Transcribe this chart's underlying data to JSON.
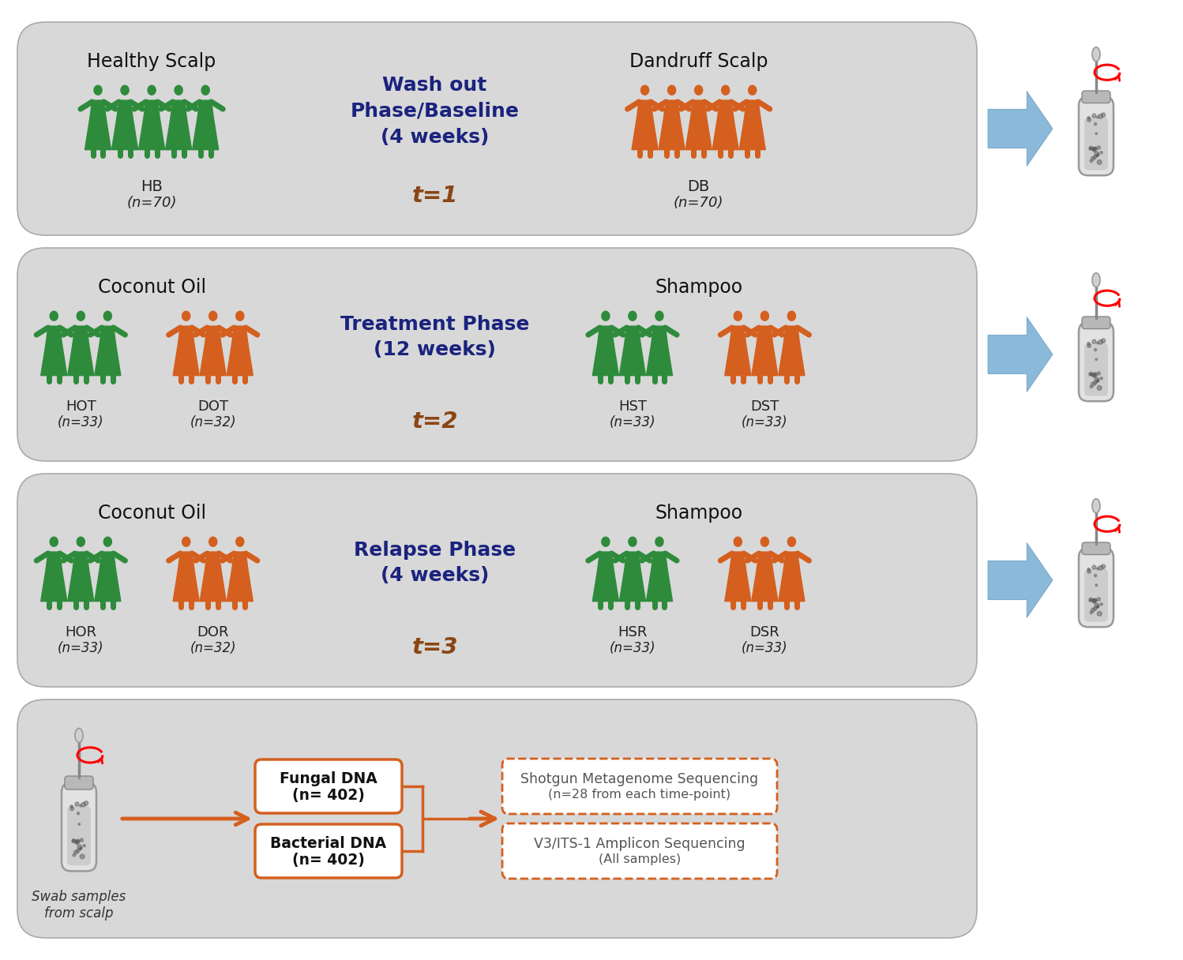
{
  "bg_color": "#ffffff",
  "green_color": "#2e8b3c",
  "orange_color": "#d45f1e",
  "blue_dark": "#1a237e",
  "brown_color": "#8B4513",
  "arrow_blue": "#7ab0d4",
  "arrow_blue_edge": "#5a90b4",
  "phases": [
    {
      "title_left": "Healthy Scalp",
      "title_right": "Dandruff Scalp",
      "phase_title": "Wash out\nPhase/Baseline\n(4 weeks)",
      "time_label": "t=1",
      "left_groups": [
        {
          "label": "HB",
          "n": "n=70",
          "color": "green",
          "count": 5
        }
      ],
      "right_groups": [
        {
          "label": "DB",
          "n": "n=70",
          "color": "orange",
          "count": 5
        }
      ]
    },
    {
      "title_left": "Coconut Oil",
      "title_right": "Shampoo",
      "phase_title": "Treatment Phase\n(12 weeks)",
      "time_label": "t=2",
      "left_groups": [
        {
          "label": "HOT",
          "n": "n=33",
          "color": "green",
          "count": 3
        },
        {
          "label": "DOT",
          "n": "n=32",
          "color": "orange",
          "count": 3
        }
      ],
      "right_groups": [
        {
          "label": "HST",
          "n": "n=33",
          "color": "green",
          "count": 3
        },
        {
          "label": "DST",
          "n": "n=33",
          "color": "orange",
          "count": 3
        }
      ]
    },
    {
      "title_left": "Coconut Oil",
      "title_right": "Shampoo",
      "phase_title": "Relapse Phase\n(4 weeks)",
      "time_label": "t=3",
      "left_groups": [
        {
          "label": "HOR",
          "n": "n=33",
          "color": "green",
          "count": 3
        },
        {
          "label": "DOR",
          "n": "n=32",
          "color": "orange",
          "count": 3
        }
      ],
      "right_groups": [
        {
          "label": "HSR",
          "n": "n=33",
          "color": "green",
          "count": 3
        },
        {
          "label": "DSR",
          "n": "n=33",
          "color": "orange",
          "count": 3
        }
      ]
    }
  ],
  "bottom_panel": {
    "swab_text": "Swab samples\nfrom scalp",
    "boxes": [
      {
        "label": "Bacterial DNA\n(n= 402)"
      },
      {
        "label": "Fungal DNA\n(n= 402)"
      }
    ],
    "right_boxes": [
      {
        "label": "V3/ITS-1 Amplicon Sequencing\n(All samples)"
      },
      {
        "label": "Shotgun Metagenome Sequencing\n(n=28 from each time-point)"
      }
    ]
  }
}
